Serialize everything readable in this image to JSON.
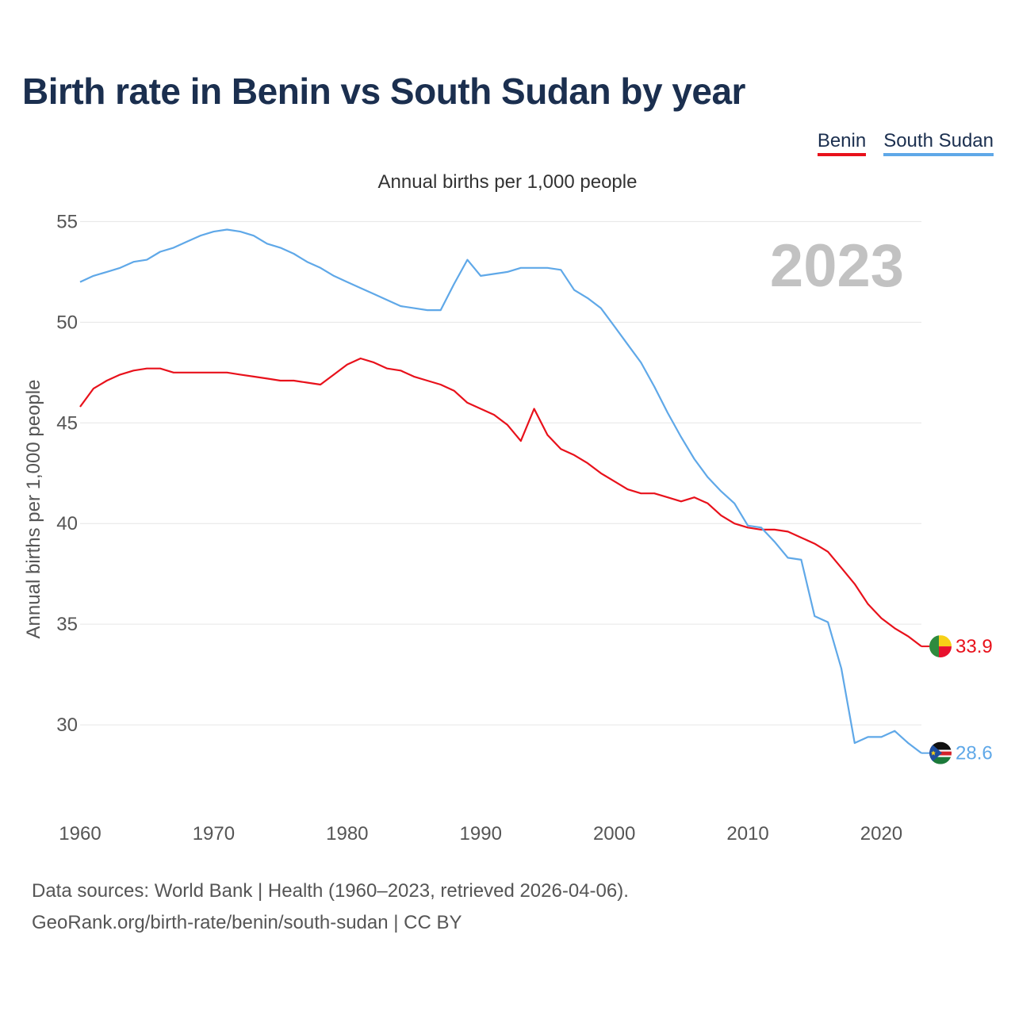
{
  "title": "Birth rate in Benin vs South Sudan by year",
  "subtitle": "Annual births per 1,000 people",
  "year_watermark": "2023",
  "footer": {
    "line1": "Data sources: World Bank | Health (1960–2023, retrieved 2026-04-06).",
    "line2": "GeoRank.org/birth-rate/benin/south-sudan | CC BY"
  },
  "legend": [
    {
      "name": "Benin",
      "color": "#e8111b"
    },
    {
      "name": "South Sudan",
      "color": "#5fa8e8"
    }
  ],
  "chart_data": {
    "type": "line",
    "title": "Birth rate in Benin vs South Sudan by year",
    "ylabel": "Annual births per 1,000 people",
    "xlabel": "",
    "ylim": [
      26.5,
      56
    ],
    "xlim": [
      1960,
      2023
    ],
    "yticks": [
      30,
      35,
      40,
      45,
      50,
      55
    ],
    "xticks": [
      1960,
      1970,
      1980,
      1990,
      2000,
      2010,
      2020
    ],
    "x": [
      1960,
      1961,
      1962,
      1963,
      1964,
      1965,
      1966,
      1967,
      1968,
      1969,
      1970,
      1971,
      1972,
      1973,
      1974,
      1975,
      1976,
      1977,
      1978,
      1979,
      1980,
      1981,
      1982,
      1983,
      1984,
      1985,
      1986,
      1987,
      1988,
      1989,
      1990,
      1991,
      1992,
      1993,
      1994,
      1995,
      1996,
      1997,
      1998,
      1999,
      2000,
      2001,
      2002,
      2003,
      2004,
      2005,
      2006,
      2007,
      2008,
      2009,
      2010,
      2011,
      2012,
      2013,
      2014,
      2015,
      2016,
      2017,
      2018,
      2019,
      2020,
      2021,
      2022,
      2023
    ],
    "series": [
      {
        "name": "Benin",
        "color": "#e8111b",
        "end_label": "33.9",
        "values": [
          45.8,
          46.7,
          47.1,
          47.4,
          47.6,
          47.7,
          47.7,
          47.5,
          47.5,
          47.5,
          47.5,
          47.5,
          47.4,
          47.3,
          47.2,
          47.1,
          47.1,
          47.0,
          46.9,
          47.4,
          47.9,
          48.2,
          48.0,
          47.7,
          47.6,
          47.3,
          47.1,
          46.9,
          46.6,
          46.0,
          45.7,
          45.4,
          44.9,
          44.1,
          45.7,
          44.4,
          43.7,
          43.4,
          43.0,
          42.5,
          42.1,
          41.7,
          41.5,
          41.5,
          41.3,
          41.1,
          41.3,
          41.0,
          40.4,
          40.0,
          39.8,
          39.7,
          39.7,
          39.6,
          39.3,
          39.0,
          38.6,
          37.8,
          37.0,
          36.0,
          35.3,
          34.8,
          34.4,
          33.9
        ]
      },
      {
        "name": "South Sudan",
        "color": "#5fa8e8",
        "end_label": "28.6",
        "values": [
          52.0,
          52.3,
          52.5,
          52.7,
          53.0,
          53.1,
          53.5,
          53.7,
          54.0,
          54.3,
          54.5,
          54.6,
          54.5,
          54.3,
          53.9,
          53.7,
          53.4,
          53.0,
          52.7,
          52.3,
          52.0,
          51.7,
          51.4,
          51.1,
          50.8,
          50.7,
          50.6,
          50.6,
          51.9,
          53.1,
          52.3,
          52.4,
          52.5,
          52.7,
          52.7,
          52.7,
          52.6,
          51.6,
          51.2,
          50.7,
          49.8,
          48.9,
          48.0,
          46.8,
          45.5,
          44.3,
          43.2,
          42.3,
          41.6,
          41.0,
          39.9,
          39.8,
          39.1,
          38.3,
          38.2,
          35.4,
          35.1,
          32.8,
          29.1,
          29.4,
          29.4,
          29.7,
          29.1,
          28.6
        ]
      }
    ]
  }
}
